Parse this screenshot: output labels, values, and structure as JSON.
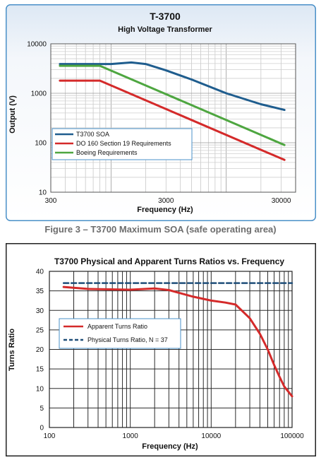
{
  "figure_caption": "Figure 3 – T3700 Maximum SOA (safe operating area)",
  "colors": {
    "blue": "#1f5d8e",
    "red": "#d42a2a",
    "green": "#4ea640",
    "dash_blue": "#1f4e79",
    "panel_border1": "#4a90c8",
    "panel_bg1_top": "#e2ecf6",
    "panel_border2": "#222222"
  },
  "chart_data": [
    {
      "type": "line",
      "title": "T-3700",
      "subtitle": "High Voltage Transformer",
      "xlabel": "Frequency (Hz)",
      "ylabel": "Output (V)",
      "xscale": "log",
      "yscale": "log",
      "xlim": [
        300,
        40000
      ],
      "ylim": [
        10,
        10000
      ],
      "xticks": [
        {
          "value": 300,
          "label": "300"
        },
        {
          "value": 3000,
          "label": "3000"
        },
        {
          "value": 30000,
          "label": "30000"
        }
      ],
      "yticks": [
        {
          "value": 10,
          "label": "10"
        },
        {
          "value": 100,
          "label": "100"
        },
        {
          "value": 1000,
          "label": "1000"
        },
        {
          "value": 10000,
          "label": "10000"
        }
      ],
      "grid": true,
      "legend": "lower-left",
      "series": [
        {
          "name": "T3700 SOA",
          "color": "#1f5d8e",
          "x": [
            360,
            1000,
            1500,
            2000,
            3000,
            5000,
            10000,
            20000,
            32000
          ],
          "y": [
            3900,
            3900,
            4200,
            3900,
            2900,
            1900,
            1000,
            600,
            460
          ]
        },
        {
          "name": "DO 160 Section 19 Requirements",
          "color": "#d42a2a",
          "x": [
            360,
            800,
            32000
          ],
          "y": [
            1800,
            1800,
            45
          ]
        },
        {
          "name": "Boeing Requirements",
          "color": "#4ea640",
          "x": [
            360,
            800,
            32000
          ],
          "y": [
            3600,
            3600,
            90
          ]
        }
      ]
    },
    {
      "type": "line",
      "title": "T3700 Physical and Apparent Turns Ratios vs. Frequency",
      "xlabel": "Frequency (Hz)",
      "ylabel": "Turns Ratio",
      "xscale": "log",
      "xlim": [
        100,
        100000
      ],
      "ylim": [
        0,
        40
      ],
      "xticks": [
        {
          "value": 100,
          "label": "100"
        },
        {
          "value": 1000,
          "label": "1000"
        },
        {
          "value": 10000,
          "label": "10000"
        },
        {
          "value": 100000,
          "label": "100000"
        }
      ],
      "yticks": [
        {
          "value": 0,
          "label": "0"
        },
        {
          "value": 5,
          "label": "5"
        },
        {
          "value": 10,
          "label": "10"
        },
        {
          "value": 15,
          "label": "15"
        },
        {
          "value": 20,
          "label": "20"
        },
        {
          "value": 25,
          "label": "25"
        },
        {
          "value": 30,
          "label": "30"
        },
        {
          "value": 35,
          "label": "35"
        },
        {
          "value": 40,
          "label": "40"
        }
      ],
      "grid": true,
      "legend": "center-left",
      "series": [
        {
          "name": "Apparent Turns Ratio",
          "color": "#d42a2a",
          "dash": false,
          "x": [
            150,
            300,
            1000,
            2000,
            3000,
            4000,
            6000,
            10000,
            15000,
            20000,
            30000,
            40000,
            50000,
            60000,
            70000,
            80000,
            100000
          ],
          "y": [
            36,
            35.5,
            35.3,
            35.6,
            35.2,
            34.5,
            33.5,
            32.5,
            32,
            31.5,
            28,
            24,
            20,
            16,
            13,
            10.5,
            8
          ]
        },
        {
          "name": "Physical Turns Ratio, N = 37",
          "color": "#1f4e79",
          "dash": true,
          "x": [
            150,
            100000
          ],
          "y": [
            37,
            37
          ]
        }
      ]
    }
  ]
}
